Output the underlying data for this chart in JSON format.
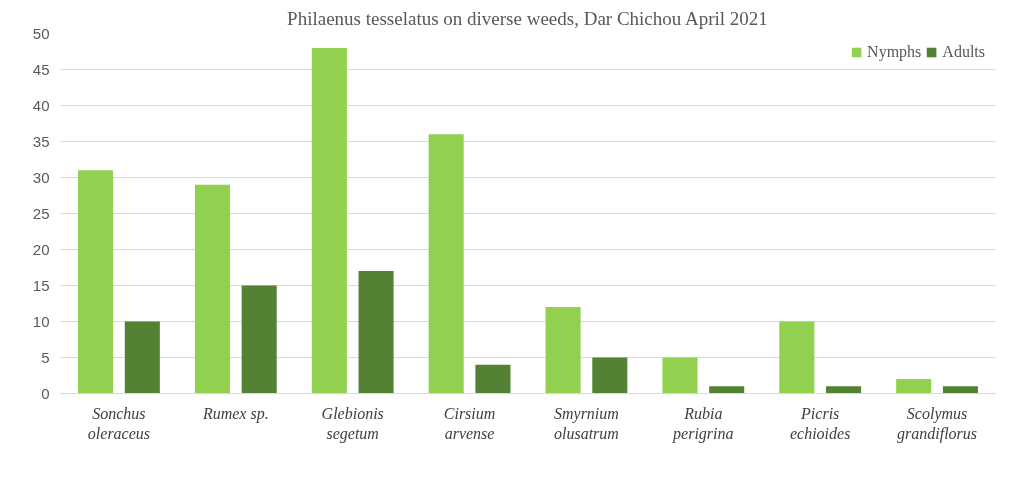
{
  "chart_data": {
    "type": "bar",
    "title": "Philaenus tesselatus on diverse weeds, Dar Chichou April 2021",
    "categories": [
      "Sonchus\noleraceus",
      "Rumex sp.",
      "Glebionis\nsegetum",
      "Cirsium\narvense",
      "Smyrnium\nolusatrum",
      "Rubia\nperigrina",
      "Picris\nechioides",
      "Scolymus\ngrandiflorus"
    ],
    "series": [
      {
        "name": "Nymphs",
        "color": "#92d050",
        "values": [
          31,
          29,
          48,
          36,
          12,
          5,
          10,
          2
        ]
      },
      {
        "name": "Adults",
        "color": "#548235",
        "values": [
          10,
          15,
          17,
          4,
          5,
          1,
          1,
          1
        ]
      }
    ],
    "ylim": [
      0,
      50
    ],
    "yticks": [
      0,
      5,
      10,
      15,
      20,
      25,
      30,
      35,
      40,
      45,
      50
    ],
    "grid": "y",
    "legend": "top right"
  }
}
